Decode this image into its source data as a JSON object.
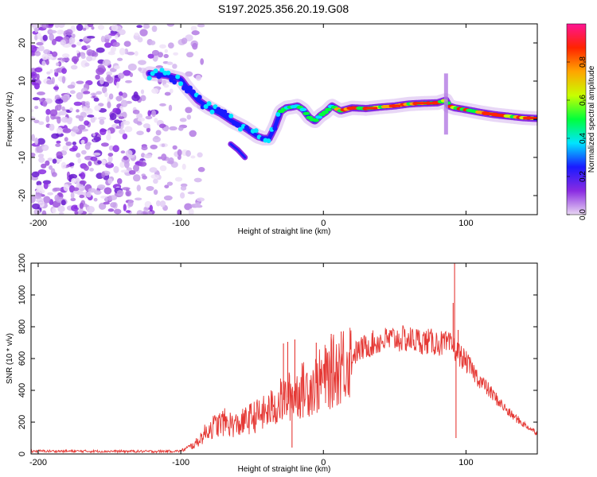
{
  "title": "S197.2025.356.20.19.G08",
  "chart_data": [
    {
      "type": "heatmap",
      "name": "spectrogram",
      "xlabel": "Height of straight line (km)",
      "ylabel": "Frequency (Hz)",
      "xlim": [
        -205,
        150
      ],
      "ylim": [
        -25,
        25
      ],
      "xticks": [
        -200,
        -100,
        0,
        100
      ],
      "yticks": [
        -20,
        -10,
        0,
        10,
        20
      ],
      "ridge": {
        "x": [
          -122,
          -110,
          -100,
          -95,
          -88,
          -80,
          -72,
          -64,
          -56,
          -50,
          -46,
          -42,
          -38,
          -34,
          -30,
          -26,
          -22,
          -18,
          -14,
          -10,
          -6,
          -2,
          2,
          6,
          12,
          20,
          30,
          40,
          50,
          60,
          70,
          80,
          86,
          88,
          92,
          100,
          110,
          120,
          130,
          140,
          150
        ],
        "y": [
          12,
          11.5,
          10.5,
          8,
          5,
          3,
          1.5,
          -0.5,
          -2,
          -3.5,
          -4.5,
          -5,
          -5,
          -2,
          2,
          3,
          3.2,
          3.5,
          2.5,
          0.5,
          -0.5,
          1,
          2,
          3.5,
          2.2,
          3,
          2.8,
          3.2,
          3.5,
          4,
          4.2,
          4.3,
          5,
          3.5,
          3,
          2.5,
          1.8,
          1.2,
          0.8,
          0.4,
          0.2
        ]
      },
      "side_streak": {
        "x": [
          -65,
          -60,
          -55
        ],
        "y": [
          -6.5,
          -8,
          -10
        ]
      },
      "spike": {
        "x": 86,
        "y_range": [
          -4,
          12
        ]
      },
      "colorbar": {
        "label": "Normalized spectral amplitude",
        "range": [
          0.0,
          1.0
        ],
        "ticks": [
          "0.0",
          "0.2",
          "0.4",
          "0.6",
          "0.8"
        ],
        "colors": [
          "#e8d6f2",
          "#8a2be2",
          "#1a1aff",
          "#00e5ff",
          "#00ff3c",
          "#c8ff00",
          "#ffa500",
          "#ff2400",
          "#ff1493"
        ]
      }
    },
    {
      "type": "line",
      "name": "snr",
      "xlabel": "Height of straight line (km)",
      "ylabel": "SNR (10 * v/v)",
      "xlim": [
        -205,
        150
      ],
      "ylim": [
        0,
        1200
      ],
      "xticks": [
        -200,
        -100,
        0,
        100
      ],
      "yticks": [
        0,
        200,
        400,
        600,
        800,
        1000,
        1200
      ],
      "color": "#e53935",
      "envelope": {
        "x": [
          -205,
          -160,
          -120,
          -100,
          -90,
          -80,
          -70,
          -60,
          -50,
          -40,
          -30,
          -20,
          -10,
          0,
          10,
          20,
          30,
          40,
          50,
          60,
          70,
          80,
          90,
          100,
          110,
          120,
          130,
          140,
          150
        ],
        "y": [
          18,
          17,
          16,
          18,
          60,
          160,
          200,
          180,
          230,
          260,
          330,
          380,
          420,
          470,
          540,
          620,
          680,
          710,
          725,
          720,
          710,
          700,
          680,
          580,
          460,
          360,
          260,
          190,
          130
        ]
      },
      "spikes": [
        {
          "x": 92.0,
          "y": 1200
        },
        {
          "x": 93.0,
          "y": 100
        },
        {
          "x": 91.0,
          "y": 950
        },
        {
          "x": 94.5,
          "y": 780
        },
        {
          "x": -28.0,
          "y": 695
        },
        {
          "x": -25.0,
          "y": 705
        },
        {
          "x": -20.0,
          "y": 720
        },
        {
          "x": -22.0,
          "y": 40
        },
        {
          "x": -35.0,
          "y": 310
        },
        {
          "x": 5.5,
          "y": 755
        },
        {
          "x": 12.5,
          "y": 770
        },
        {
          "x": -5.0,
          "y": 700
        }
      ]
    }
  ]
}
